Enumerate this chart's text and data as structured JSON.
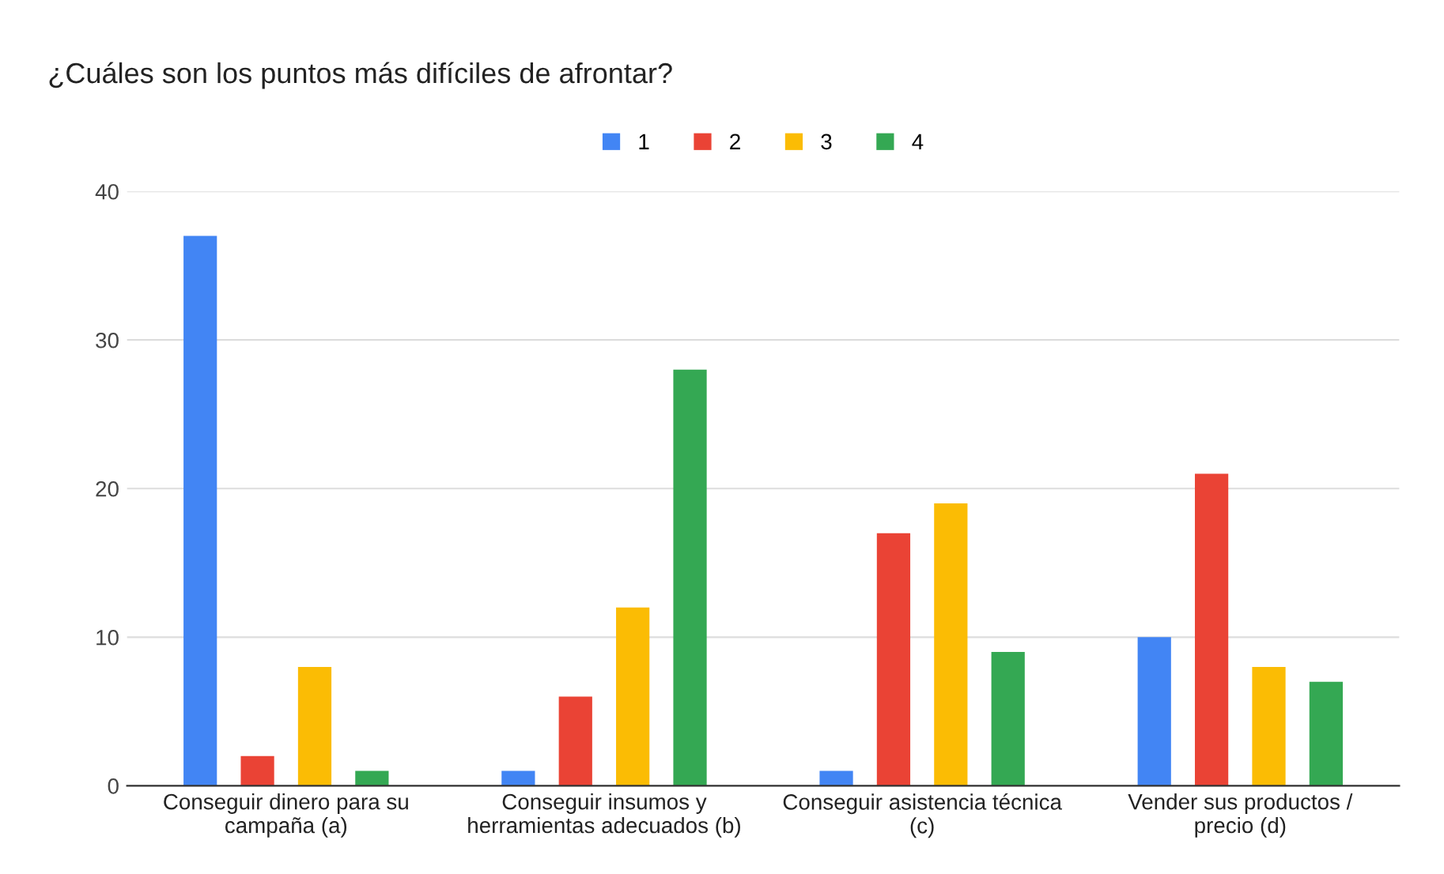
{
  "chart_data": {
    "type": "bar",
    "title": "¿Cuáles son los puntos más difíciles de afrontar?",
    "categories": [
      "Conseguir dinero para su\ncampaña (a)",
      "Conseguir insumos y\nherramientas adecuados (b)",
      "Conseguir asistencia técnica\n(c)",
      "Vender sus productos /\nprecio (d)"
    ],
    "series": [
      {
        "name": "1",
        "color": "#4285f4",
        "values": [
          37,
          1,
          1,
          10
        ]
      },
      {
        "name": "2",
        "color": "#ea4335",
        "values": [
          2,
          6,
          17,
          21
        ]
      },
      {
        "name": "3",
        "color": "#fbbc04",
        "values": [
          8,
          12,
          19,
          8
        ]
      },
      {
        "name": "4",
        "color": "#34a853",
        "values": [
          1,
          28,
          9,
          7
        ]
      }
    ],
    "ylim": [
      0,
      40
    ],
    "yticks": [
      0,
      10,
      20,
      30,
      40
    ],
    "grid": "y",
    "legend": "top"
  }
}
